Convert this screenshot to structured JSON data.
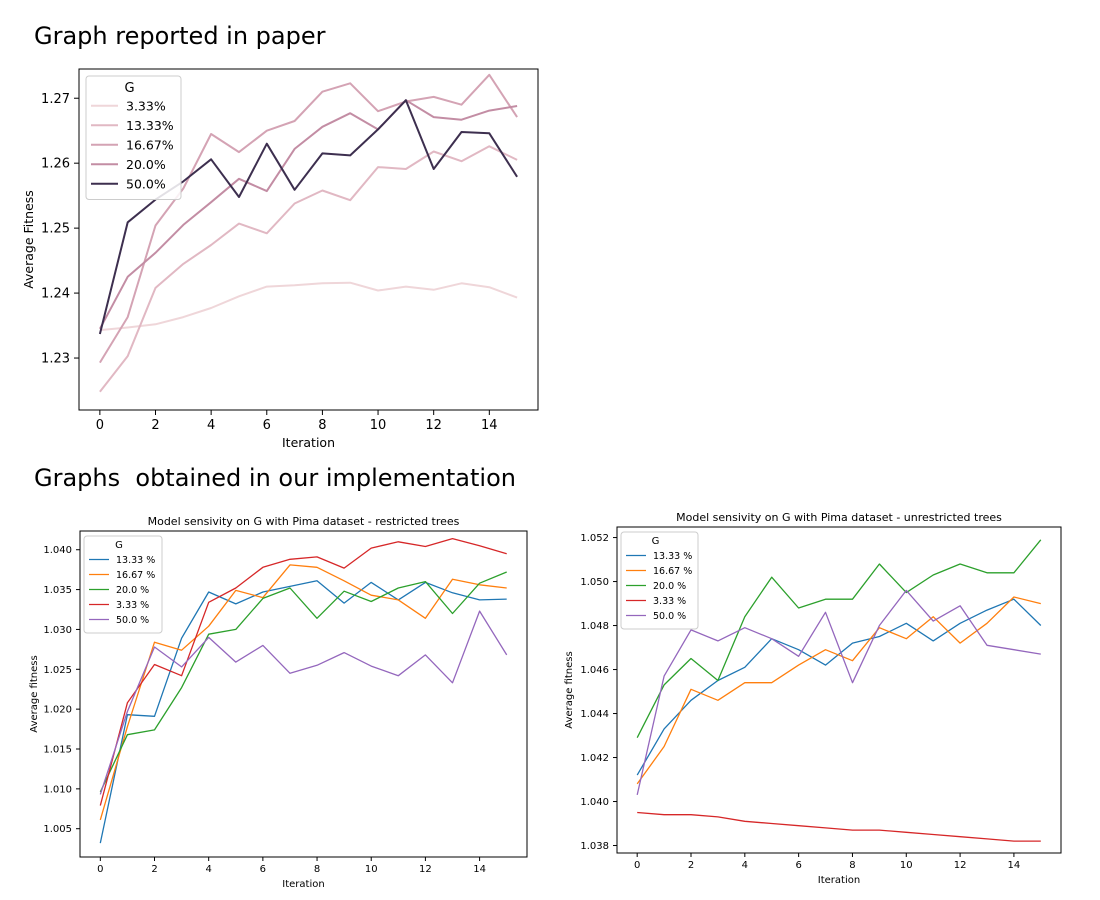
{
  "headings": {
    "paper": "Graph reported in paper",
    "ours": "Graphs  obtained in our implementation"
  },
  "chart_data": [
    {
      "type": "line",
      "title": "",
      "xlabel": "Iteration",
      "ylabel": "Average Fitness",
      "xlim": [
        -0.75,
        15.75
      ],
      "ylim": [
        1.222,
        1.2745
      ],
      "xticks": [
        0,
        2,
        4,
        6,
        8,
        10,
        12,
        14
      ],
      "yticks": [
        1.23,
        1.24,
        1.25,
        1.26,
        1.27
      ],
      "ytick_labels": [
        "1.23",
        "1.24",
        "1.25",
        "1.26",
        "1.27"
      ],
      "grid": false,
      "legend": {
        "title": "G",
        "placement": "top-left"
      },
      "x": [
        0,
        1,
        2,
        3,
        4,
        5,
        6,
        7,
        8,
        9,
        10,
        11,
        12,
        13,
        14,
        15
      ],
      "series": [
        {
          "name": "3.33%",
          "color": "#efd6d9",
          "values": [
            1.2343,
            1.2347,
            1.2352,
            1.2363,
            1.2377,
            1.2395,
            1.241,
            1.2412,
            1.2415,
            1.2416,
            1.2404,
            1.241,
            1.2405,
            1.2415,
            1.2409,
            1.2393
          ]
        },
        {
          "name": "13.33%",
          "color": "#e1b8c3",
          "values": [
            1.2248,
            1.2303,
            1.2408,
            1.2445,
            1.2474,
            1.2507,
            1.2492,
            1.2538,
            1.2558,
            1.2543,
            1.2594,
            1.2591,
            1.2618,
            1.2603,
            1.2626,
            1.2605
          ]
        },
        {
          "name": "16.67%",
          "color": "#d4a3b4",
          "values": [
            1.2293,
            1.2363,
            1.2504,
            1.2561,
            1.2645,
            1.2617,
            1.265,
            1.2665,
            1.271,
            1.2723,
            1.268,
            1.2695,
            1.2702,
            1.269,
            1.2736,
            1.2671
          ]
        },
        {
          "name": "20.0%",
          "color": "#c38da4",
          "values": [
            1.2345,
            1.2425,
            1.2462,
            1.2505,
            1.254,
            1.2576,
            1.2557,
            1.2622,
            1.2656,
            1.2677,
            1.2652,
            1.2697,
            1.2671,
            1.2667,
            1.2681,
            1.2688
          ]
        },
        {
          "name": "50.0%",
          "color": "#3d2f4f",
          "values": [
            1.2337,
            1.2509,
            1.2544,
            1.2572,
            1.2606,
            1.2548,
            1.263,
            1.2559,
            1.2615,
            1.2612,
            1.2652,
            1.2697,
            1.2591,
            1.2648,
            1.2646,
            1.2579
          ]
        }
      ]
    },
    {
      "type": "line",
      "title": "Model sensivity on G with Pima dataset - restricted trees",
      "xlabel": "Iteration",
      "ylabel": "Average fitness",
      "xlim": [
        -0.75,
        15.75
      ],
      "ylim": [
        1.00145,
        1.04235
      ],
      "xticks": [
        0,
        2,
        4,
        6,
        8,
        10,
        12,
        14
      ],
      "yticks": [
        1.005,
        1.01,
        1.015,
        1.02,
        1.025,
        1.03,
        1.035,
        1.04
      ],
      "ytick_labels": [
        "1.005",
        "1.010",
        "1.015",
        "1.020",
        "1.025",
        "1.030",
        "1.035",
        "1.040"
      ],
      "grid": false,
      "legend": {
        "title": "G",
        "placement": "top-left"
      },
      "x": [
        0,
        1,
        2,
        3,
        4,
        5,
        6,
        7,
        8,
        9,
        10,
        11,
        12,
        13,
        14,
        15
      ],
      "series": [
        {
          "name": "13.33 %",
          "color": "#1f77b4",
          "values": [
            1.0032,
            1.0193,
            1.0191,
            1.0289,
            1.0347,
            1.0332,
            1.0347,
            1.0354,
            1.0361,
            1.0333,
            1.0359,
            1.0337,
            1.0359,
            1.0346,
            1.0337,
            1.0338
          ]
        },
        {
          "name": "16.67 %",
          "color": "#ff7f0e",
          "values": [
            1.0061,
            1.0178,
            1.0284,
            1.0274,
            1.0304,
            1.0349,
            1.034,
            1.0381,
            1.0378,
            1.0361,
            1.0343,
            1.0337,
            1.0314,
            1.0363,
            1.0356,
            1.0352
          ]
        },
        {
          "name": "20.0 %",
          "color": "#2ca02c",
          "values": [
            1.0096,
            1.0168,
            1.0174,
            1.0227,
            1.0294,
            1.03,
            1.0339,
            1.0352,
            1.0314,
            1.0348,
            1.0335,
            1.0352,
            1.036,
            1.032,
            1.0358,
            1.0372
          ]
        },
        {
          "name": "3.33 %",
          "color": "#d62728",
          "values": [
            1.0079,
            1.0208,
            1.0256,
            1.0242,
            1.0334,
            1.0352,
            1.0378,
            1.0388,
            1.0391,
            1.0377,
            1.0402,
            1.041,
            1.0404,
            1.0414,
            1.0405,
            1.0395
          ]
        },
        {
          "name": "50.0 %",
          "color": "#9467bd",
          "values": [
            1.0093,
            1.0197,
            1.0278,
            1.0253,
            1.029,
            1.0259,
            1.028,
            1.0245,
            1.0255,
            1.0271,
            1.0254,
            1.0242,
            1.0268,
            1.0233,
            1.0323,
            1.0268
          ]
        }
      ]
    },
    {
      "type": "line",
      "title": "Model sensivity on G with Pima dataset - unrestricted trees",
      "xlabel": "Iteration",
      "ylabel": "Average fitness",
      "xlim": [
        -0.75,
        15.75
      ],
      "ylim": [
        1.03766,
        1.05248
      ],
      "xticks": [
        0,
        2,
        4,
        6,
        8,
        10,
        12,
        14
      ],
      "yticks": [
        1.038,
        1.04,
        1.042,
        1.044,
        1.046,
        1.048,
        1.05,
        1.052
      ],
      "ytick_labels": [
        "1.038",
        "1.040",
        "1.042",
        "1.044",
        "1.046",
        "1.048",
        "1.050",
        "1.052"
      ],
      "grid": false,
      "legend": {
        "title": "G",
        "placement": "top-left"
      },
      "x": [
        0,
        1,
        2,
        3,
        4,
        5,
        6,
        7,
        8,
        9,
        10,
        11,
        12,
        13,
        14,
        15
      ],
      "series": [
        {
          "name": "13.33 %",
          "color": "#1f77b4",
          "values": [
            1.0412,
            1.0433,
            1.0446,
            1.0455,
            1.0461,
            1.0474,
            1.0469,
            1.0462,
            1.0472,
            1.0475,
            1.0481,
            1.0473,
            1.0481,
            1.0487,
            1.0492,
            1.048
          ]
        },
        {
          "name": "16.67 %",
          "color": "#ff7f0e",
          "values": [
            1.0408,
            1.0425,
            1.0451,
            1.0446,
            1.0454,
            1.0454,
            1.0462,
            1.0469,
            1.0464,
            1.0479,
            1.0474,
            1.0484,
            1.0472,
            1.0481,
            1.0493,
            1.049
          ]
        },
        {
          "name": "20.0 %",
          "color": "#2ca02c",
          "values": [
            1.0429,
            1.0453,
            1.0465,
            1.0455,
            1.0484,
            1.0502,
            1.0488,
            1.0492,
            1.0492,
            1.0508,
            1.0495,
            1.0503,
            1.0508,
            1.0504,
            1.0504,
            1.0519
          ]
        },
        {
          "name": "3.33 %",
          "color": "#d62728",
          "values": [
            1.0395,
            1.0394,
            1.0394,
            1.0393,
            1.0391,
            1.039,
            1.0389,
            1.0388,
            1.0387,
            1.0387,
            1.0386,
            1.0385,
            1.0384,
            1.0383,
            1.0382,
            1.0382
          ]
        },
        {
          "name": "50.0 %",
          "color": "#9467bd",
          "values": [
            1.0403,
            1.0457,
            1.0478,
            1.0473,
            1.0479,
            1.0474,
            1.0466,
            1.0486,
            1.0454,
            1.048,
            1.0496,
            1.0482,
            1.0489,
            1.0471,
            1.0469,
            1.0467
          ]
        }
      ]
    }
  ]
}
